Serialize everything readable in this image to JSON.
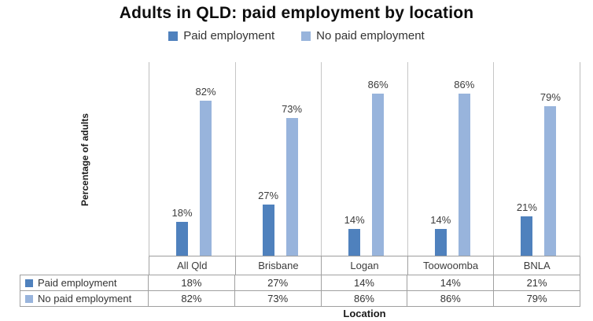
{
  "chart_data": {
    "type": "bar",
    "title": "Adults in QLD: paid employment by location",
    "xlabel": "Location",
    "ylabel": "Percentage of adults",
    "categories": [
      "All Qld",
      "Brisbane",
      "Logan",
      "Toowoomba",
      "BNLA"
    ],
    "series": [
      {
        "name": "Paid employment",
        "color": "#4f81bd",
        "values": [
          18,
          27,
          14,
          14,
          21
        ],
        "value_labels": [
          "18%",
          "27%",
          "14%",
          "14%",
          "21%"
        ]
      },
      {
        "name": "No paid employment",
        "color": "#98b4dc",
        "values": [
          82,
          73,
          86,
          86,
          79
        ],
        "value_labels": [
          "82%",
          "73%",
          "86%",
          "86%",
          "79%"
        ]
      }
    ],
    "ylim": [
      0,
      100
    ],
    "grid": false,
    "y_axis_ticks_shown": false,
    "legend_position": "top-center",
    "data_labels_shown": true,
    "data_table": {
      "row_headers": [
        "Paid employment",
        "No paid employment"
      ],
      "rows": [
        [
          "18%",
          "27%",
          "14%",
          "14%",
          "21%"
        ],
        [
          "82%",
          "73%",
          "86%",
          "86%",
          "79%"
        ]
      ]
    }
  },
  "style": {
    "paid_color": "#4f81bd",
    "no_paid_color": "#98b4dc",
    "plot_line_color": "#c6c6c6",
    "table_border_color": "#a0a0a0",
    "label_text_color": "#3c3c3c"
  }
}
